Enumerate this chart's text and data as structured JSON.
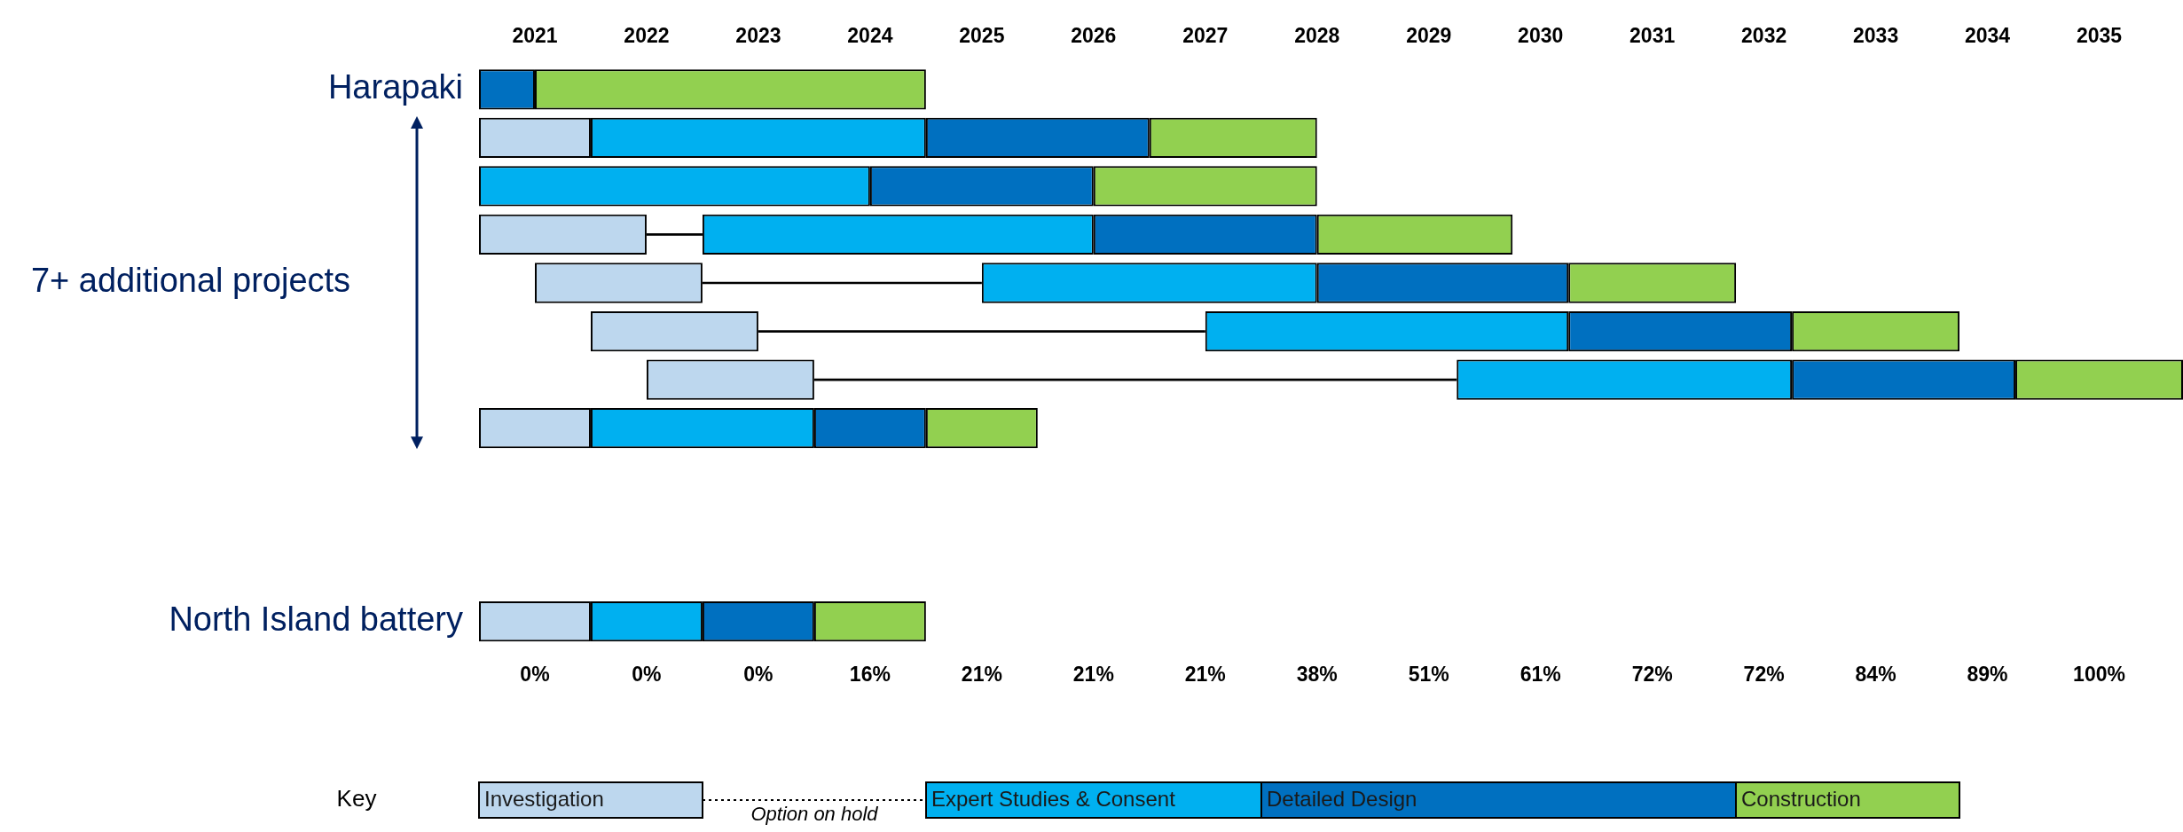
{
  "chart_data": {
    "type": "bar",
    "orientation": "horizontal",
    "legend": "bottom",
    "legend_title": "Key",
    "grid": false,
    "categories": [
      "Harapaki",
      null,
      null,
      null,
      null,
      null,
      null,
      null,
      null,
      null,
      null,
      "North Island battery"
    ],
    "annotations": [
      "7+ additional projects",
      "0%",
      "0%",
      "0%",
      "16%",
      "21%",
      "21%",
      "21%",
      "38%",
      "51%",
      "61%",
      "72%",
      "72%",
      "84%",
      "89%",
      "100%"
    ],
    "xlim": [
      2020.5,
      2035.75
    ],
    "xticks": [
      2021,
      2022,
      2023,
      2024,
      2025,
      2026,
      2027,
      2028,
      2029,
      2030,
      2031,
      2032,
      2033,
      2034,
      2035
    ],
    "series": [
      {
        "name": "Investigation",
        "color": "#bdd7ee",
        "base": [
          null,
          2020.5,
          null,
          2020.5,
          2021,
          2021.5,
          2022,
          2020.5,
          null,
          null,
          null,
          2020.5
        ],
        "values": [
          null,
          1,
          null,
          1.5,
          1.5,
          1.5,
          1.5,
          1,
          null,
          null,
          null,
          1
        ]
      },
      {
        "name": "Option on hold",
        "color": "#000000",
        "line_style": "dotted",
        "base": [
          null,
          null,
          null,
          2022,
          2022.5,
          2023,
          2023.5,
          null,
          null,
          null,
          null,
          null
        ],
        "values": [
          null,
          null,
          null,
          0.5,
          2.5,
          4,
          5.75,
          null,
          null,
          null,
          null,
          null
        ]
      },
      {
        "name": "Expert Studies & Consent",
        "color": "#00b0f0",
        "base": [
          null,
          2021.5,
          2020.5,
          2022.5,
          2025,
          2027,
          2029.25,
          2021.5,
          null,
          null,
          null,
          2021.5
        ],
        "values": [
          null,
          3,
          3.5,
          3.5,
          3,
          3.25,
          3,
          2,
          null,
          null,
          null,
          1
        ]
      },
      {
        "name": "Detailed Design",
        "color": "#0070c0",
        "base": [
          2020.5,
          2024.5,
          2024,
          2026,
          2028,
          2030.25,
          2032.25,
          2023.5,
          null,
          null,
          null,
          2022.5
        ],
        "values": [
          0.5,
          2,
          2,
          2,
          2.25,
          2,
          2,
          1,
          null,
          null,
          null,
          1
        ]
      },
      {
        "name": "Construction",
        "color": "#92d050",
        "base": [
          2021,
          2026.5,
          2026,
          2028,
          2030.25,
          2032.25,
          2034.25,
          2024.5,
          null,
          null,
          null,
          2023.5
        ],
        "values": [
          3.5,
          1.5,
          2,
          1.75,
          1.5,
          1.5,
          1.5,
          1,
          null,
          null,
          null,
          1
        ]
      }
    ]
  }
}
